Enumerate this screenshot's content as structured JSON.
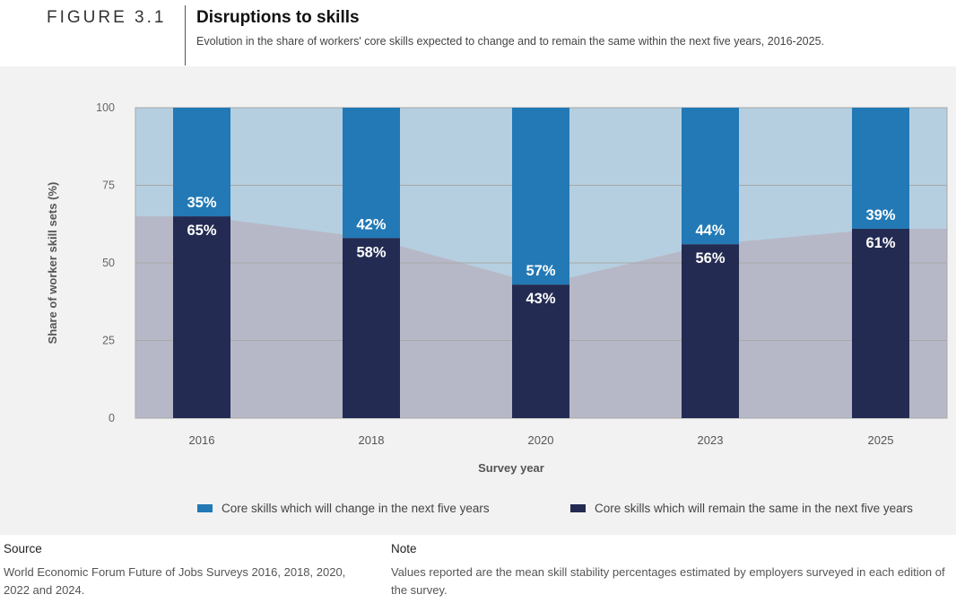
{
  "header": {
    "figure_label": "FIGURE 3.1",
    "title": "Disruptions to skills",
    "subtitle": "Evolution in the share of workers' core skills expected to change and to remain the same within the next five years, 2016-2025."
  },
  "chart_data": {
    "type": "bar",
    "stacked": true,
    "categories": [
      "2016",
      "2018",
      "2020",
      "2023",
      "2025"
    ],
    "series": [
      {
        "name": "Core skills which will remain the same in the next five years",
        "values": [
          65,
          58,
          43,
          56,
          61
        ],
        "labels": [
          "65%",
          "58%",
          "43%",
          "56%",
          "61%"
        ],
        "color": "#232b52"
      },
      {
        "name": "Core skills which will change in the next five years",
        "values": [
          35,
          42,
          57,
          44,
          39
        ],
        "labels": [
          "35%",
          "42%",
          "57%",
          "44%",
          "39%"
        ],
        "color": "#2279b5"
      }
    ],
    "ylim": [
      0,
      100
    ],
    "yticks": [
      "0",
      "25",
      "50",
      "75",
      "100"
    ],
    "xlabel": "Survey year",
    "ylabel": "Share of worker skill sets (%)",
    "grid": true,
    "area_colors": {
      "upper": "#b5cfe1",
      "lower": "#b7b8c7"
    },
    "legend_position": "bottom"
  },
  "legend": {
    "change_label": "Core skills which will change in the next five years",
    "same_label": "Core skills which will remain the same in the next five years",
    "change_color": "#2279b5",
    "same_color": "#232b52"
  },
  "footer": {
    "source_heading": "Source",
    "source_text": "World Economic Forum Future of Jobs Surveys 2016, 2018, 2020, 2022 and 2024.",
    "note_heading": "Note",
    "note_text": "Values reported are the mean skill stability percentages estimated by employers surveyed in each edition of the survey."
  }
}
